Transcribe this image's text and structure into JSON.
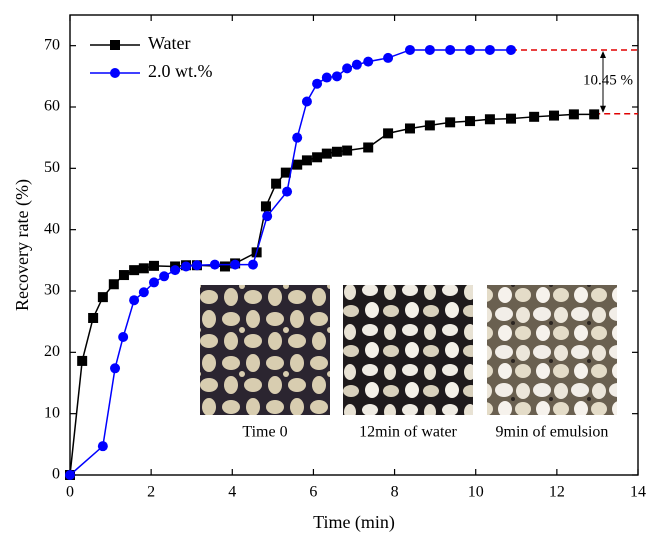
{
  "chart_data": {
    "type": "line",
    "xlabel": "Time (min)",
    "ylabel": "Recovery rate (%)",
    "xlim": [
      0,
      14
    ],
    "ylim": [
      0,
      75
    ],
    "xticks": [
      0,
      2,
      4,
      6,
      8,
      10,
      12,
      14
    ],
    "yticks": [
      0,
      10,
      20,
      30,
      40,
      50,
      60,
      70
    ],
    "legend": "upper left",
    "series": [
      {
        "name": "Water",
        "color": "#000000",
        "marker": "square",
        "x": [
          0,
          0.3,
          0.57,
          0.81,
          1.08,
          1.33,
          1.58,
          1.82,
          2.07,
          2.59,
          2.86,
          3.13,
          3.82,
          4.07,
          4.6,
          4.83,
          5.08,
          5.32,
          5.6,
          5.84,
          6.09,
          6.33,
          6.58,
          6.83,
          7.35,
          7.84,
          8.38,
          8.87,
          9.37,
          9.86,
          10.35,
          10.87,
          11.44,
          11.93,
          12.42,
          12.92
        ],
        "values": [
          0,
          18.6,
          25.6,
          29,
          31.1,
          32.6,
          33.4,
          33.7,
          34.1,
          34,
          34.2,
          34.2,
          34,
          34.5,
          36.3,
          43.8,
          47.5,
          49.3,
          50.6,
          51.3,
          51.8,
          52.4,
          52.7,
          52.9,
          53.4,
          55.7,
          56.5,
          57,
          57.5,
          57.7,
          58,
          58.1,
          58.4,
          58.6,
          58.8,
          58.8
        ]
      },
      {
        "name": "2.0 wt.%",
        "color": "#0000ff",
        "marker": "circle",
        "x": [
          0,
          0.81,
          1.11,
          1.31,
          1.58,
          1.82,
          2.07,
          2.32,
          2.59,
          2.86,
          3.13,
          3.57,
          4.07,
          4.51,
          4.86,
          5.35,
          5.6,
          5.84,
          6.09,
          6.33,
          6.58,
          6.83,
          7.07,
          7.35,
          7.84,
          8.38,
          8.87,
          9.37,
          9.86,
          10.35,
          10.87
        ],
        "values": [
          0,
          4.7,
          17.4,
          22.5,
          28.5,
          29.8,
          31.4,
          32.4,
          33.4,
          34,
          34.2,
          34.3,
          34.3,
          34.3,
          42.2,
          46.2,
          55,
          60.9,
          63.8,
          64.8,
          65,
          66.3,
          66.9,
          67.4,
          68,
          69.3,
          69.3,
          69.3,
          69.3,
          69.3,
          69.3
        ]
      }
    ],
    "reference_lines": {
      "values": [
        58.9,
        69.3
      ],
      "color": "#e00000",
      "style": "dashed"
    },
    "annotation": "10.45 %",
    "insets": [
      "Time 0",
      "12min of water",
      "9min of  emulsion"
    ]
  }
}
